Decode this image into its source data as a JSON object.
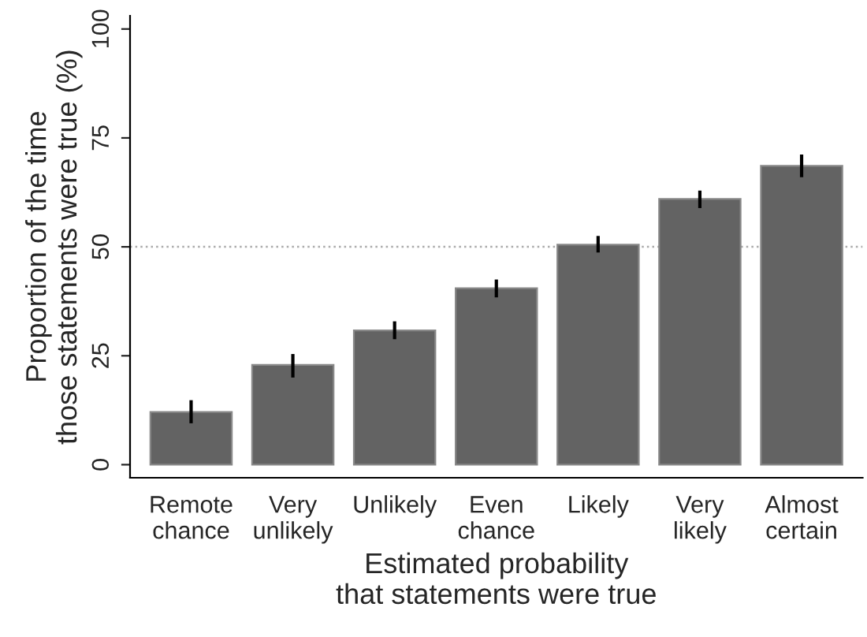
{
  "chart_data": {
    "type": "bar",
    "xlabel": "Estimated probability\nthat statements were true",
    "ylabel": "Proportion of the time\nthose statements were true (%)",
    "categories": [
      "Remote\nchance",
      "Very\nunlikely",
      "Unlikely",
      "Even\nchance",
      "Likely",
      "Very\nlikely",
      "Almost\ncertain"
    ],
    "values": [
      12.1,
      22.9,
      30.8,
      40.5,
      50.5,
      61.0,
      68.6
    ],
    "errors": [
      [
        9.5,
        14.8
      ],
      [
        20.0,
        25.4
      ],
      [
        28.8,
        32.9
      ],
      [
        38.4,
        42.5
      ],
      [
        48.7,
        52.5
      ],
      [
        58.9,
        62.9
      ],
      [
        66.0,
        71.2
      ]
    ],
    "color": "#636363",
    "ylim": [
      -3,
      103
    ],
    "yticks": [
      0,
      25,
      50,
      75,
      100
    ],
    "grid": false,
    "ref_lines": [
      {
        "axis": "y",
        "value": 50,
        "label": null,
        "color": "#aaaaaa",
        "line_style": "dotted"
      }
    ]
  }
}
